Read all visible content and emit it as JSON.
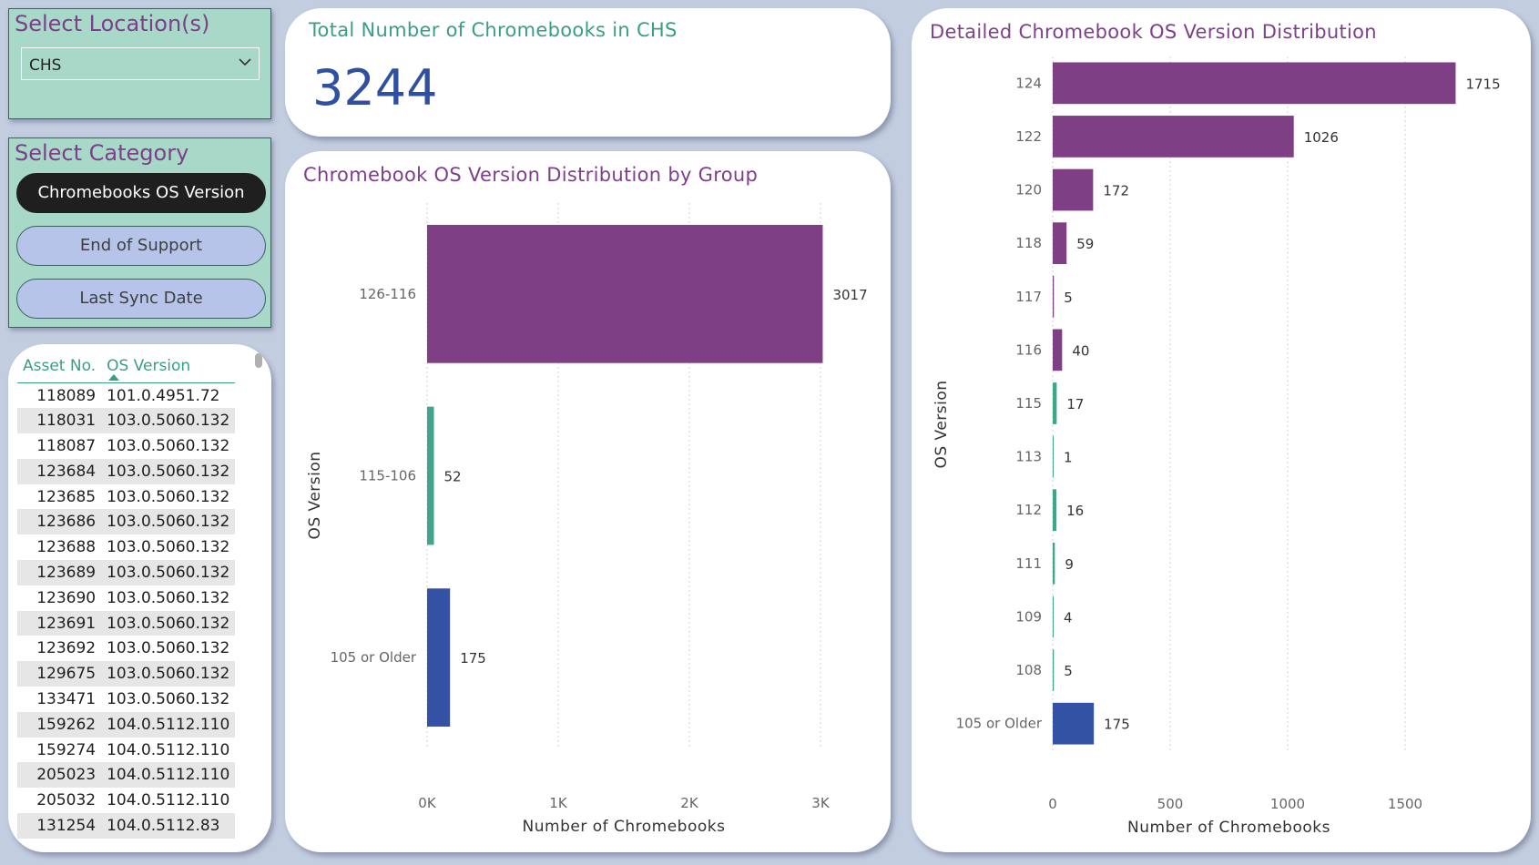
{
  "location_panel": {
    "title": "Select Location(s)",
    "selected": "CHS",
    "dropdown_icon": "chevron-down-icon"
  },
  "category_panel": {
    "title": "Select Category",
    "buttons": [
      {
        "label": "Chromebooks OS Version",
        "active": true
      },
      {
        "label": "End of Support",
        "active": false
      },
      {
        "label": "Last Sync Date",
        "active": false
      }
    ]
  },
  "asset_table": {
    "columns": [
      "Asset No.",
      "OS Version"
    ],
    "sort_column": "OS Version",
    "sort_direction": "ascending",
    "rows": [
      [
        "118089",
        "101.0.4951.72"
      ],
      [
        "118031",
        "103.0.5060.132"
      ],
      [
        "118087",
        "103.0.5060.132"
      ],
      [
        "123684",
        "103.0.5060.132"
      ],
      [
        "123685",
        "103.0.5060.132"
      ],
      [
        "123686",
        "103.0.5060.132"
      ],
      [
        "123688",
        "103.0.5060.132"
      ],
      [
        "123689",
        "103.0.5060.132"
      ],
      [
        "123690",
        "103.0.5060.132"
      ],
      [
        "123691",
        "103.0.5060.132"
      ],
      [
        "123692",
        "103.0.5060.132"
      ],
      [
        "129675",
        "103.0.5060.132"
      ],
      [
        "133471",
        "103.0.5060.132"
      ],
      [
        "159262",
        "104.0.5112.110"
      ],
      [
        "159274",
        "104.0.5112.110"
      ],
      [
        "205023",
        "104.0.5112.110"
      ],
      [
        "205032",
        "104.0.5112.110"
      ],
      [
        "131254",
        "104.0.5112.83"
      ]
    ]
  },
  "kpi": {
    "title": "Total Number of Chromebooks in CHS",
    "value": "3244"
  },
  "colors": {
    "purple": "#7e3f84",
    "teal": "#3fa58d",
    "blue": "#3452a4",
    "title_purple": "#7e3f8a",
    "title_teal": "#3a9e85",
    "kpi_blue": "#2f4fa0"
  },
  "chart_data": [
    {
      "type": "bar",
      "orientation": "horizontal",
      "title": "Chromebook OS Version Distribution by Group",
      "xlabel": "Number of Chromebooks",
      "ylabel": "OS Version",
      "xlim": [
        0,
        3000
      ],
      "xticks": [
        0,
        1000,
        2000,
        3000
      ],
      "xtick_labels": [
        "0K",
        "1K",
        "2K",
        "3K"
      ],
      "grid": "vertical dotted",
      "categories": [
        "126-116",
        "115-106",
        "105 or Older"
      ],
      "values": [
        3017,
        52,
        175
      ],
      "bar_colors": [
        "#7e3f84",
        "#3fa58d",
        "#3452a4"
      ]
    },
    {
      "type": "bar",
      "orientation": "horizontal",
      "title": "Detailed Chromebook OS Version Distribution",
      "xlabel": "Number of Chromebooks",
      "ylabel": "OS Version",
      "xlim": [
        0,
        1500
      ],
      "xticks": [
        0,
        500,
        1000,
        1500
      ],
      "xtick_labels": [
        "0",
        "500",
        "1000",
        "1500"
      ],
      "grid": "vertical dotted",
      "categories": [
        "124",
        "122",
        "120",
        "118",
        "117",
        "116",
        "115",
        "113",
        "112",
        "111",
        "109",
        "108",
        "105 or Older"
      ],
      "values": [
        1715,
        1026,
        172,
        59,
        5,
        40,
        17,
        1,
        16,
        9,
        4,
        5,
        175
      ],
      "bar_colors": [
        "#7e3f84",
        "#7e3f84",
        "#7e3f84",
        "#7e3f84",
        "#7e3f84",
        "#7e3f84",
        "#3fa58d",
        "#3fa58d",
        "#3fa58d",
        "#3fa58d",
        "#3fa58d",
        "#3fa58d",
        "#3452a4"
      ]
    }
  ]
}
